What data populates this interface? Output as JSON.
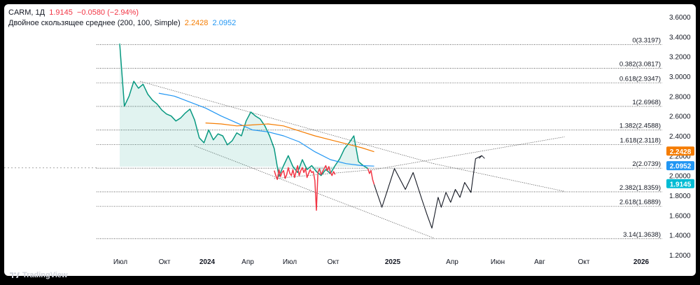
{
  "header": {
    "symbol": "CARM, 1Д",
    "price": "1.9145",
    "change": "−0.0580 (−2.94%)",
    "indicator_name": "Двойное скользящее среднее (200, 100, Simple)",
    "ma_slow_value": "2.2428",
    "ma_fast_value": "2.0952"
  },
  "footer": {
    "brand": "TradingView"
  },
  "colors": {
    "price_up": "#089981",
    "price_down": "#f23645",
    "ma_slow": "#f57c00",
    "ma_fast": "#2196f3",
    "projection": "#131722",
    "last_price_badge": "#00bcd4"
  },
  "chart_data": {
    "type": "line",
    "title": "",
    "x_ticks": [
      "Июл",
      "Окт",
      "2024",
      "Апр",
      "Июл",
      "Окт",
      "2025",
      "Апр",
      "Июн",
      "Авг",
      "Окт",
      "2026"
    ],
    "y_ticks": [
      "3.6000",
      "3.4000",
      "3.2000",
      "3.0000",
      "2.8000",
      "2.6000",
      "2.4000",
      "2.2000",
      "2.0000",
      "1.8000",
      "1.6000",
      "1.4000",
      "1.2000"
    ],
    "ylim": [
      1.2,
      3.6
    ],
    "price_labels": [
      {
        "text": "2.2428",
        "value": 2.2428,
        "color": "#f57c00"
      },
      {
        "text": "2.0952",
        "value": 2.0952,
        "color": "#2196f3"
      },
      {
        "text": "1.9145",
        "value": 1.9145,
        "color": "#00bcd4"
      }
    ],
    "fib_levels": [
      {
        "label": "0(3.3197)",
        "value": 3.3197
      },
      {
        "label": "0.382(3.0817)",
        "value": 3.0817
      },
      {
        "label": "0.618(2.9347)",
        "value": 2.9347
      },
      {
        "label": "1(2.6968)",
        "value": 2.6968
      },
      {
        "label": "1.382(2.4588)",
        "value": 2.4588
      },
      {
        "label": "1.618(2.3118)",
        "value": 2.3118
      },
      {
        "label": "2(2.0739)",
        "value": 2.0739
      },
      {
        "label": "2.382(1.8359)",
        "value": 1.8359
      },
      {
        "label": "2.618(1.6889)",
        "value": 1.6889
      },
      {
        "label": "3.14(1.3638)",
        "value": 1.3638
      }
    ],
    "series": [
      {
        "kind": "price-green",
        "x": [
          0.0,
          0.3,
          0.6,
          0.9,
          1.2,
          1.5,
          1.8,
          2.1,
          2.4,
          2.7,
          3.0,
          3.3,
          3.6,
          3.9,
          4.2,
          4.5,
          4.8,
          5.1,
          5.4,
          5.7,
          6.0,
          6.3,
          6.6,
          6.9,
          7.2,
          7.5,
          7.8,
          8.1,
          8.4,
          8.7,
          9.0,
          9.3,
          9.6,
          9.9,
          10.2,
          10.5,
          10.8,
          11.1,
          11.4,
          11.7,
          12.0,
          12.3,
          12.6,
          12.9,
          13.2,
          13.5,
          13.8,
          14.1,
          14.4,
          14.7,
          15.0,
          15.3,
          15.6,
          15.9
        ],
        "values": [
          3.33,
          2.7,
          2.8,
          2.95,
          2.88,
          2.92,
          2.82,
          2.76,
          2.72,
          2.66,
          2.62,
          2.6,
          2.55,
          2.58,
          2.63,
          2.67,
          2.56,
          2.38,
          2.33,
          2.46,
          2.36,
          2.42,
          2.4,
          2.31,
          2.35,
          2.43,
          2.4,
          2.55,
          2.64,
          2.6,
          2.57,
          2.5,
          2.4,
          2.27,
          1.99,
          2.1,
          2.2,
          2.09,
          2.03,
          2.16,
          2.06,
          2.1,
          2.04,
          2.0,
          2.06,
          2.02,
          2.1,
          2.17,
          2.27,
          2.33,
          2.4,
          2.14,
          2.1,
          2.07
        ]
      },
      {
        "kind": "price-red",
        "x": [
          9.9,
          10.0,
          10.1,
          10.2,
          10.3,
          10.4,
          10.5,
          10.6,
          10.7,
          10.8,
          10.9,
          11.0,
          11.1,
          11.2,
          11.3,
          11.4,
          11.5,
          11.6,
          11.7,
          11.8,
          11.9,
          12.0,
          12.1,
          12.2,
          12.3,
          12.4,
          12.5,
          12.6,
          12.7,
          12.8,
          12.9,
          13.0,
          13.1,
          13.2,
          13.3,
          13.4,
          13.5,
          13.6,
          13.7,
          13.8
        ],
        "values": [
          2.05,
          2.0,
          1.96,
          2.06,
          1.99,
          2.03,
          2.05,
          1.97,
          2.01,
          2.08,
          2.02,
          2.0,
          2.06,
          1.98,
          2.04,
          2.1,
          2.0,
          2.05,
          2.08,
          2.03,
          2.07,
          1.98,
          2.02,
          2.06,
          2.03,
          2.04,
          1.95,
          1.65,
          2.03,
          2.07,
          2.01,
          2.04,
          2.07,
          2.1,
          2.05,
          2.09,
          2.03,
          2.0,
          2.04,
          2.01
        ]
      },
      {
        "kind": "price-red-tail",
        "x": [
          15.9,
          16.0,
          16.1,
          16.2,
          16.3
        ],
        "values": [
          2.07,
          2.02,
          2.05,
          1.96,
          1.91
        ]
      },
      {
        "kind": "ma-fast",
        "x": [
          2.5,
          3.5,
          4.5,
          5.5,
          6.5,
          7.5,
          8.5,
          9.5,
          10.5,
          11.5,
          12.5,
          13.5,
          14.5,
          15.5,
          16.3
        ],
        "values": [
          2.83,
          2.8,
          2.74,
          2.68,
          2.6,
          2.53,
          2.46,
          2.44,
          2.4,
          2.34,
          2.24,
          2.16,
          2.12,
          2.1,
          2.095
        ]
      },
      {
        "kind": "ma-slow",
        "x": [
          5.5,
          6.5,
          7.5,
          8.5,
          9.5,
          10.5,
          11.5,
          12.5,
          13.5,
          14.5,
          15.5,
          16.3
        ],
        "values": [
          2.53,
          2.52,
          2.5,
          2.51,
          2.52,
          2.5,
          2.45,
          2.4,
          2.36,
          2.32,
          2.28,
          2.24
        ]
      },
      {
        "kind": "projection",
        "x": [
          16.3,
          16.8,
          17.6,
          18.3,
          18.8,
          19.4,
          19.7,
          20.0,
          20.4,
          20.6,
          20.9,
          21.2,
          21.5,
          21.8,
          22.1,
          22.5,
          22.8,
          23.2
        ],
        "values": [
          1.91,
          1.68,
          2.07,
          1.86,
          2.03,
          1.74,
          1.6,
          1.47,
          1.78,
          1.68,
          1.83,
          1.73,
          1.86,
          1.78,
          1.93,
          1.83,
          2.17,
          2.2
        ]
      }
    ]
  }
}
